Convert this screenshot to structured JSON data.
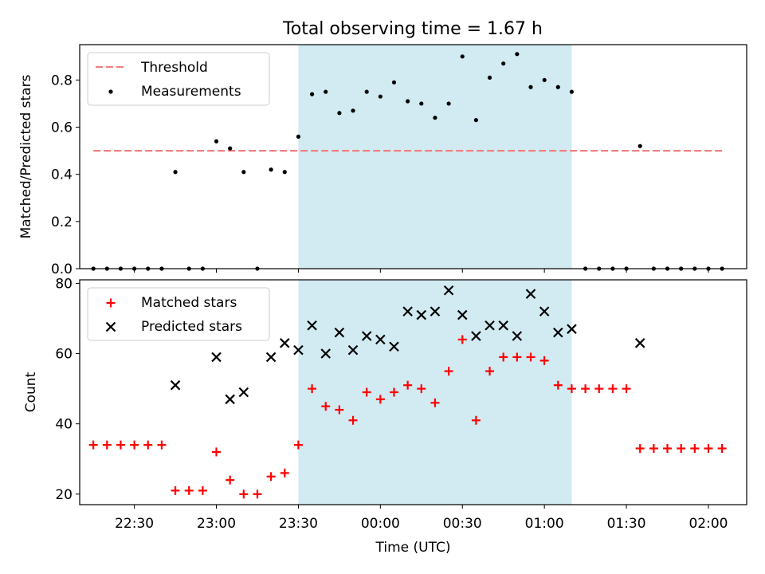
{
  "title": "Total observing time = 1.67 h",
  "colors": {
    "measurement": "#000000",
    "threshold": "#f08080",
    "matched": "#ff0000",
    "predicted": "#000000",
    "shade": "#add8e6"
  },
  "chart_data": [
    {
      "type": "scatter",
      "panel": "top",
      "ylabel": "Matched/Predicted stars",
      "ylim": [
        0,
        0.95
      ],
      "yticks": [
        0.0,
        0.2,
        0.4,
        0.6,
        0.8
      ],
      "ytick_labels": [
        "0.0",
        "0.2",
        "0.4",
        "0.6",
        "0.8"
      ],
      "x_range": [
        "22:10",
        "02:14"
      ],
      "legend": {
        "position": "top-left",
        "entries": [
          "Threshold",
          "Measurements"
        ]
      },
      "shaded_interval": {
        "start": "23:30",
        "end": "01:10"
      },
      "threshold": {
        "name": "Threshold",
        "value": 0.5,
        "x_start": "22:15",
        "x_end": "02:05"
      },
      "series": [
        {
          "name": "Measurements",
          "x": [
            "22:15",
            "22:20",
            "22:25",
            "22:30",
            "22:35",
            "22:40",
            "22:45",
            "22:50",
            "22:55",
            "23:00",
            "23:05",
            "23:10",
            "23:15",
            "23:20",
            "23:25",
            "23:30",
            "23:35",
            "23:40",
            "23:45",
            "23:50",
            "23:55",
            "00:00",
            "00:05",
            "00:10",
            "00:15",
            "00:20",
            "00:25",
            "00:30",
            "00:35",
            "00:40",
            "00:45",
            "00:50",
            "00:55",
            "01:00",
            "01:05",
            "01:10",
            "01:15",
            "01:20",
            "01:25",
            "01:30",
            "01:35",
            "01:40",
            "01:45",
            "01:50",
            "01:55",
            "02:00",
            "02:05"
          ],
          "y": [
            0,
            0,
            0,
            0,
            0,
            0,
            0.41,
            0,
            0,
            0.54,
            0.51,
            0.41,
            0,
            0.42,
            0.41,
            0.56,
            0.74,
            0.75,
            0.66,
            0.67,
            0.75,
            0.73,
            0.79,
            0.71,
            0.7,
            0.64,
            0.7,
            0.9,
            0.63,
            0.81,
            0.87,
            0.91,
            0.77,
            0.8,
            0.77,
            0.75,
            0,
            0,
            0,
            0,
            0.52,
            0,
            0,
            0,
            0,
            0,
            0
          ]
        }
      ]
    },
    {
      "type": "scatter",
      "panel": "bottom",
      "xlabel": "Time (UTC)",
      "ylabel": "Count",
      "ylim": [
        17,
        81
      ],
      "yticks": [
        20,
        40,
        60,
        80
      ],
      "ytick_labels": [
        "20",
        "40",
        "60",
        "80"
      ],
      "x_range": [
        "22:10",
        "02:14"
      ],
      "xticks": [
        "22:30",
        "23:00",
        "23:30",
        "00:00",
        "00:30",
        "01:00",
        "01:30",
        "02:00"
      ],
      "legend": {
        "position": "top-left",
        "entries": [
          "Matched stars",
          "Predicted stars"
        ]
      },
      "shaded_interval": {
        "start": "23:30",
        "end": "01:10"
      },
      "series": [
        {
          "name": "Matched stars",
          "marker": "+",
          "x": [
            "22:15",
            "22:20",
            "22:25",
            "22:30",
            "22:35",
            "22:40",
            "22:45",
            "22:50",
            "22:55",
            "23:00",
            "23:05",
            "23:10",
            "23:15",
            "23:20",
            "23:25",
            "23:30",
            "23:35",
            "23:40",
            "23:45",
            "23:50",
            "23:55",
            "00:00",
            "00:05",
            "00:10",
            "00:15",
            "00:20",
            "00:25",
            "00:30",
            "00:35",
            "00:40",
            "00:45",
            "00:50",
            "00:55",
            "01:00",
            "01:05",
            "01:10",
            "01:15",
            "01:20",
            "01:25",
            "01:30",
            "01:35",
            "01:40",
            "01:45",
            "01:50",
            "01:55",
            "02:00",
            "02:05"
          ],
          "y": [
            34,
            34,
            34,
            34,
            34,
            34,
            21,
            21,
            21,
            32,
            24,
            20,
            20,
            25,
            26,
            34,
            50,
            45,
            44,
            41,
            49,
            47,
            49,
            51,
            50,
            46,
            55,
            64,
            41,
            55,
            59,
            59,
            59,
            58,
            51,
            50,
            50,
            50,
            50,
            50,
            33,
            33,
            33,
            33,
            33,
            33,
            33
          ]
        },
        {
          "name": "Predicted stars",
          "marker": "x",
          "x": [
            "22:45",
            "23:00",
            "23:05",
            "23:10",
            "23:20",
            "23:25",
            "23:30",
            "23:35",
            "23:40",
            "23:45",
            "23:50",
            "23:55",
            "00:00",
            "00:05",
            "00:10",
            "00:15",
            "00:20",
            "00:25",
            "00:30",
            "00:35",
            "00:40",
            "00:45",
            "00:50",
            "00:55",
            "01:00",
            "01:05",
            "01:10",
            "01:35"
          ],
          "y": [
            51,
            59,
            47,
            49,
            59,
            63,
            61,
            68,
            60,
            66,
            61,
            65,
            64,
            62,
            72,
            71,
            72,
            78,
            71,
            65,
            68,
            68,
            65,
            77,
            72,
            66,
            67,
            63
          ]
        }
      ]
    }
  ]
}
